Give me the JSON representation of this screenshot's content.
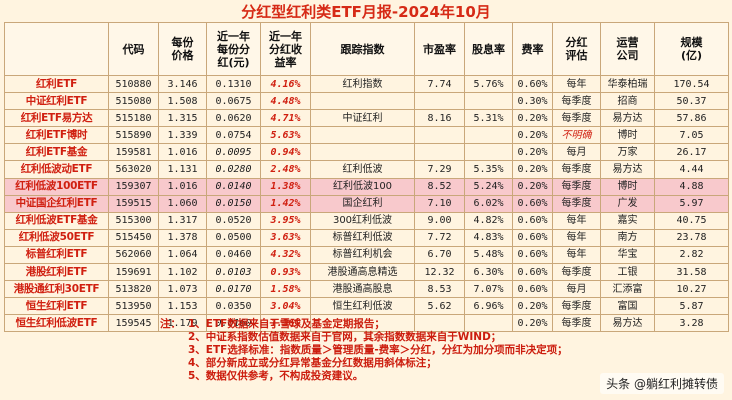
{
  "title": "分红型红利类ETF月报-2024年10月",
  "headers": [
    "",
    "代码",
    "每份\n价格",
    "近一年\n每份分\n红(元)",
    "近一年\n分红收\n益率",
    "跟踪指数",
    "市盈率",
    "股息率",
    "费率",
    "分红\n评估",
    "运营\n公司",
    "规模\n(亿)"
  ],
  "rows": [
    {
      "name": "红利ETF",
      "code": "510880",
      "price": "3.146",
      "div": "0.1310",
      "yield": "4.16%",
      "index": "红利指数",
      "pe": "7.74",
      "dy": "5.76%",
      "fee": "0.60%",
      "freq": "每年",
      "company": "华泰柏瑞",
      "size": "170.54"
    },
    {
      "name": "中证红利ETF",
      "code": "515080",
      "price": "1.508",
      "div": "0.0675",
      "yield": "4.48%",
      "index": "",
      "pe": "",
      "dy": "",
      "fee": "0.30%",
      "freq": "每季度",
      "company": "招商",
      "size": "50.37"
    },
    {
      "name": "红利ETF易方达",
      "code": "515180",
      "price": "1.315",
      "div": "0.0620",
      "yield": "4.71%",
      "index": "中证红利",
      "pe": "8.16",
      "dy": "5.31%",
      "fee": "0.20%",
      "freq": "每季度",
      "company": "易方达",
      "size": "57.86"
    },
    {
      "name": "红利ETF博时",
      "code": "515890",
      "price": "1.339",
      "div": "0.0754",
      "yield": "5.63%",
      "index": "",
      "pe": "",
      "dy": "",
      "fee": "0.20%",
      "freq": "不明确",
      "company": "博时",
      "size": "7.05"
    },
    {
      "name": "红利ETF基金",
      "code": "159581",
      "price": "1.016",
      "div": "0.0095",
      "yield": "0.94%",
      "index": "",
      "pe": "",
      "dy": "",
      "fee": "0.20%",
      "freq": "每月",
      "company": "万家",
      "size": "26.17"
    },
    {
      "name": "红利低波动ETF",
      "code": "563020",
      "price": "1.131",
      "div": "0.0280",
      "yield": "2.48%",
      "index": "红利低波",
      "pe": "7.29",
      "dy": "5.35%",
      "fee": "0.20%",
      "freq": "每季度",
      "company": "易方达",
      "size": "4.44"
    },
    {
      "name": "红利低波100ETF",
      "code": "159307",
      "price": "1.016",
      "div": "0.0140",
      "yield": "1.38%",
      "index": "红利低波100",
      "pe": "8.52",
      "dy": "5.24%",
      "fee": "0.20%",
      "freq": "每季度",
      "company": "博时",
      "size": "4.88"
    },
    {
      "name": "中证国企红利ETF",
      "code": "159515",
      "price": "1.060",
      "div": "0.0150",
      "yield": "1.42%",
      "index": "国企红利",
      "pe": "7.10",
      "dy": "6.02%",
      "fee": "0.60%",
      "freq": "每季度",
      "company": "广发",
      "size": "5.97"
    },
    {
      "name": "红利低波ETF基金",
      "code": "515300",
      "price": "1.317",
      "div": "0.0520",
      "yield": "3.95%",
      "index": "300红利低波",
      "pe": "9.00",
      "dy": "4.82%",
      "fee": "0.60%",
      "freq": "每年",
      "company": "嘉实",
      "size": "40.75"
    },
    {
      "name": "红利低波50ETF",
      "code": "515450",
      "price": "1.378",
      "div": "0.0500",
      "yield": "3.63%",
      "index": "标普红利低波",
      "pe": "7.72",
      "dy": "4.83%",
      "fee": "0.60%",
      "freq": "每年",
      "company": "南方",
      "size": "23.78"
    },
    {
      "name": "标普红利ETF",
      "code": "562060",
      "price": "1.064",
      "div": "0.0460",
      "yield": "4.32%",
      "index": "标普红利机会",
      "pe": "6.70",
      "dy": "5.48%",
      "fee": "0.60%",
      "freq": "每年",
      "company": "华宝",
      "size": "2.82"
    },
    {
      "name": "港股红利ETF",
      "code": "159691",
      "price": "1.102",
      "div": "0.0103",
      "yield": "0.93%",
      "index": "港股通高息精选",
      "pe": "12.32",
      "dy": "6.30%",
      "fee": "0.60%",
      "freq": "每季度",
      "company": "工银",
      "size": "31.58"
    },
    {
      "name": "港股通红利30ETF",
      "code": "513820",
      "price": "1.073",
      "div": "0.0170",
      "yield": "1.58%",
      "index": "港股通高股息",
      "pe": "8.53",
      "dy": "7.07%",
      "fee": "0.60%",
      "freq": "每月",
      "company": "汇添富",
      "size": "10.27"
    },
    {
      "name": "恒生红利ETF",
      "code": "513950",
      "price": "1.153",
      "div": "0.0350",
      "yield": "3.04%",
      "index": "恒生红利低波",
      "pe": "5.62",
      "dy": "6.96%",
      "fee": "0.20%",
      "freq": "每季度",
      "company": "富国",
      "size": "5.87"
    },
    {
      "name": "恒生红利低波ETF",
      "code": "159545",
      "price": "1.179",
      "div": "0.0160",
      "yield": "1.36%",
      "index": "",
      "pe": "",
      "dy": "",
      "fee": "0.20%",
      "freq": "每季度",
      "company": "易方达",
      "size": "3.28"
    }
  ],
  "notes": {
    "lead": "注：",
    "items": [
      "1、ETF数据来自于雪球及基金定期报告；",
      "2、中证系指数估值数据来自于官网，其余指数数据来自于WIND；",
      "3、ETF选择标准：指数质量＞管理质量-费率＞分红，分红为加分项而非决定项；",
      "4、部分新成立或分红异常基金分红数据用斜体标注；",
      "5、数据仅供参考，不构成投资建议。"
    ]
  },
  "watermark": "头条 @躺红利摊转债"
}
